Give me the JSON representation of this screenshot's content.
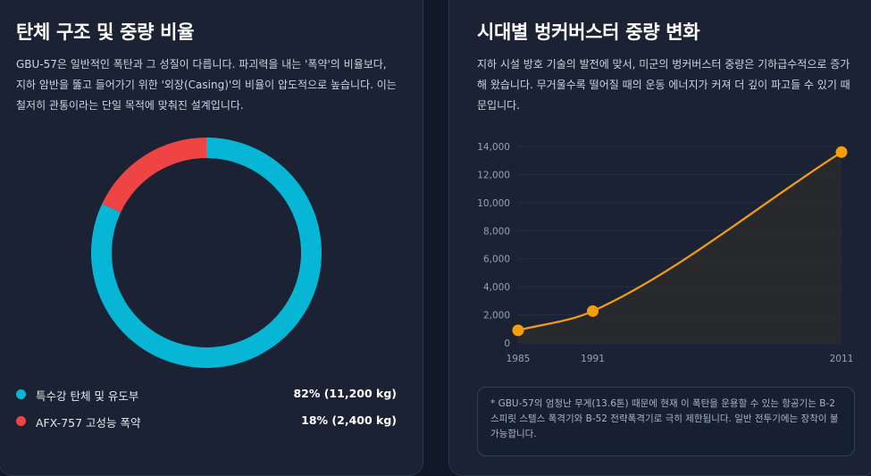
{
  "left": {
    "title": "탄체 구조 및 중량 비율",
    "description": "GBU-57은 일반적인 폭탄과 그 성질이 다릅니다. 파괴력을 내는 '폭약'의 비율보다, 지하 암반을 뚫고 들어가기 위한 '외장(Casing)'의 비율이 압도적으로 높습니다. 이는 철저히 관통이라는 단일 목적에 맞춰진 설계입니다.",
    "legend": [
      {
        "label": "특수강 탄체 및 유도부",
        "value": "82% (11,200 kg)"
      },
      {
        "label": "AFX-757 고성능 폭약",
        "value": "18% (2,400 kg)"
      }
    ]
  },
  "right": {
    "title": "시대별 벙커버스터 중량 변화",
    "description": "지하 시설 방호 기술의 발전에 맞서, 미군의 벙커버스터 중량은 기하급수적으로 증가해 왔습니다. 무거울수록 떨어질 때의 운동 에너지가 커져 더 깊이 파고들 수 있기 때문입니다.",
    "note": "* GBU-57의 엄청난 무게(13.6톤) 때문에 현재 이 폭탄을 운용할 수 있는 항공기는 B-2 스피릿 스텔스 폭격기와 B-52 전략폭격기로 극히 제한됩니다. 일반 전투기에는 장착이 불가능합니다."
  },
  "colors": {
    "steel": "#06b6d4",
    "explosive": "#ef4444",
    "line": "#f59e0b",
    "area": "#2a2a2c"
  },
  "chart_data": [
    {
      "type": "pie",
      "variant": "donut",
      "title": "탄체 구조 및 중량 비율",
      "categories": [
        "특수강 탄체 및 유도부",
        "AFX-757 고성능 폭약"
      ],
      "values": [
        82,
        18
      ],
      "weights_kg": [
        11200,
        2400
      ],
      "colors": [
        "#06b6d4",
        "#ef4444"
      ]
    },
    {
      "type": "line",
      "title": "시대별 벙커버스터 중량 변화",
      "x": [
        1985,
        1991,
        2011
      ],
      "xticks": [
        "1985",
        "1991",
        "2011"
      ],
      "values": [
        900,
        2270,
        13600
      ],
      "ylim": [
        0,
        14000
      ],
      "yticks": [
        0,
        2000,
        4000,
        6000,
        8000,
        10000,
        12000,
        14000
      ],
      "ytick_labels": [
        "0",
        "2,000",
        "4,000",
        "6,000",
        "8,000",
        "10,000",
        "12,000",
        "14,000"
      ],
      "fill": true,
      "grid": true
    }
  ]
}
